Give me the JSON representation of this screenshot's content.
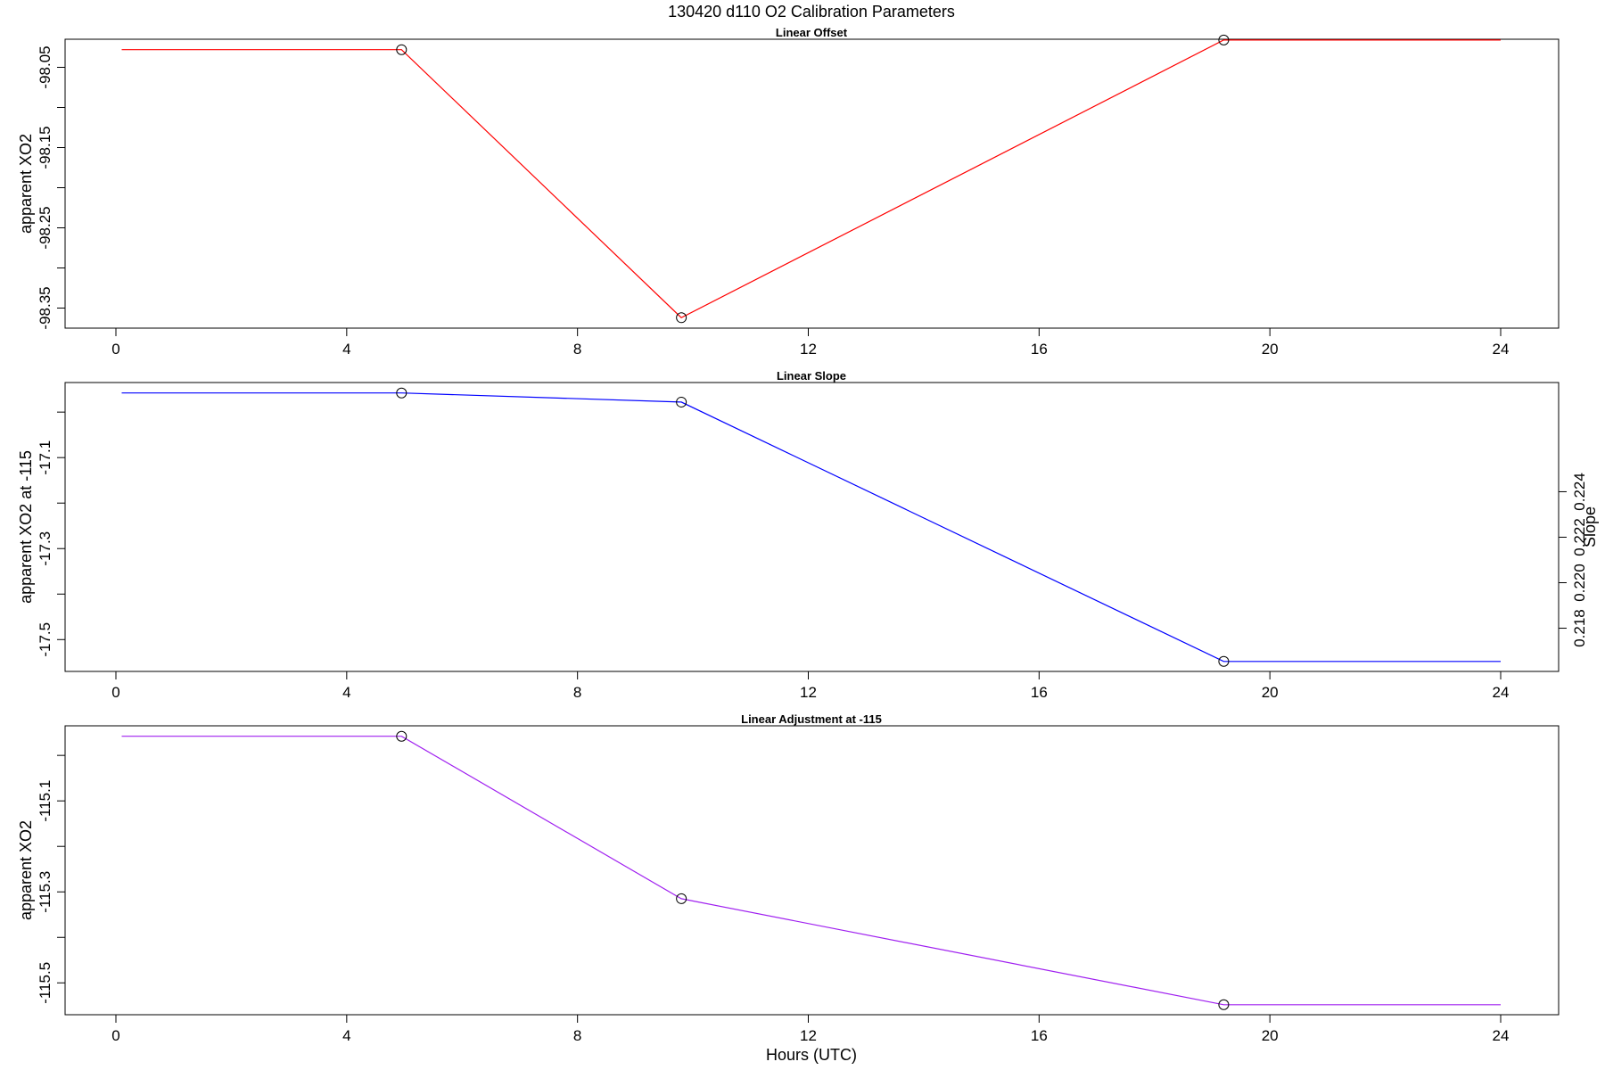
{
  "figure": {
    "title": "130420   d110   O2 Calibration Parameters",
    "xlabel": "Hours (UTC)"
  },
  "chart_data": [
    {
      "type": "line",
      "title": "Linear Offset",
      "xlabel": "",
      "ylabel": "apparent XO2",
      "xlim": [
        0,
        24
      ],
      "ylim": [
        -98.375,
        -98.015
      ],
      "xticks": [
        0,
        4,
        8,
        12,
        16,
        20,
        24
      ],
      "yticks": [
        -98.05,
        -98.1,
        -98.15,
        -98.2,
        -98.25,
        -98.3,
        -98.35
      ],
      "ytick_labels": [
        "-98.05",
        "",
        "-98.15",
        "",
        "-98.25",
        "",
        "-98.35"
      ],
      "color": "#ff0000",
      "line": {
        "x": [
          0.1,
          4.95,
          9.8,
          19.2,
          24.0
        ],
        "y": [
          -98.028,
          -98.028,
          -98.362,
          -98.016,
          -98.016
        ]
      },
      "markers": {
        "x": [
          4.95,
          9.8,
          19.2
        ],
        "y": [
          -98.028,
          -98.362,
          -98.016
        ]
      }
    },
    {
      "type": "line",
      "title": "Linear Slope",
      "xlabel": "",
      "ylabel": "apparent XO2 at -115",
      "ylabel_right": "Slope",
      "xlim": [
        0,
        24
      ],
      "ylim": [
        -17.57,
        -16.935
      ],
      "xticks": [
        0,
        4,
        8,
        12,
        16,
        20,
        24
      ],
      "yticks": [
        -17.0,
        -17.1,
        -17.2,
        -17.3,
        -17.4,
        -17.5
      ],
      "ytick_labels": [
        "",
        "-17.1",
        "",
        "-17.3",
        "",
        "-17.5"
      ],
      "yticks_right": [
        0.218,
        0.22,
        0.222,
        0.224
      ],
      "ytick_labels_right": [
        "0.218",
        "0.220",
        "0.222",
        "0.224"
      ],
      "right_scale": {
        "slope_at_-17.5": 0.2175,
        "slope_per_unit": 0.02,
        "note_units": "left"
      },
      "color": "#0000ff",
      "line": {
        "x": [
          0.1,
          4.95,
          9.8,
          19.2,
          24.0
        ],
        "y": [
          -16.958,
          -16.958,
          -16.978,
          -17.548,
          -17.548
        ]
      },
      "markers": {
        "x": [
          4.95,
          9.8,
          19.2
        ],
        "y": [
          -16.958,
          -16.978,
          -17.548
        ]
      }
    },
    {
      "type": "line",
      "title": "Linear Adjustment at -115",
      "xlabel": "",
      "ylabel": "apparent XO2",
      "xlim": [
        0,
        24
      ],
      "ylim": [
        -115.57,
        -114.935
      ],
      "xticks": [
        0,
        4,
        8,
        12,
        16,
        20,
        24
      ],
      "yticks": [
        -115.0,
        -115.1,
        -115.2,
        -115.3,
        -115.4,
        -115.5
      ],
      "ytick_labels": [
        "",
        "-115.1",
        "",
        "-115.3",
        "",
        "-115.5"
      ],
      "color": "#a020f0",
      "line": {
        "x": [
          0.1,
          4.95,
          9.8,
          19.2,
          24.0
        ],
        "y": [
          -114.958,
          -114.958,
          -115.315,
          -115.548,
          -115.548
        ]
      },
      "markers": {
        "x": [
          4.95,
          9.8,
          19.2
        ],
        "y": [
          -114.958,
          -115.315,
          -115.548
        ]
      }
    }
  ]
}
